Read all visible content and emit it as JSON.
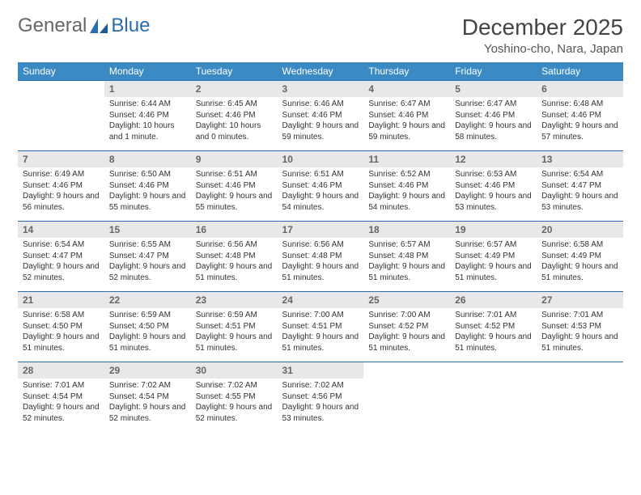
{
  "logo": {
    "text1": "General",
    "text2": "Blue"
  },
  "title": "December 2025",
  "location": "Yoshino-cho, Nara, Japan",
  "colors": {
    "header_bg": "#3b8ac4",
    "header_text": "#ffffff",
    "daynum_bg": "#e8e8e8",
    "daynum_text": "#666666",
    "border": "#2a6cb0",
    "body_text": "#333333",
    "page_bg": "#ffffff"
  },
  "daysOfWeek": [
    "Sunday",
    "Monday",
    "Tuesday",
    "Wednesday",
    "Thursday",
    "Friday",
    "Saturday"
  ],
  "weeks": [
    [
      null,
      {
        "n": "1",
        "sunrise": "6:44 AM",
        "sunset": "4:46 PM",
        "daylight": "10 hours and 1 minute."
      },
      {
        "n": "2",
        "sunrise": "6:45 AM",
        "sunset": "4:46 PM",
        "daylight": "10 hours and 0 minutes."
      },
      {
        "n": "3",
        "sunrise": "6:46 AM",
        "sunset": "4:46 PM",
        "daylight": "9 hours and 59 minutes."
      },
      {
        "n": "4",
        "sunrise": "6:47 AM",
        "sunset": "4:46 PM",
        "daylight": "9 hours and 59 minutes."
      },
      {
        "n": "5",
        "sunrise": "6:47 AM",
        "sunset": "4:46 PM",
        "daylight": "9 hours and 58 minutes."
      },
      {
        "n": "6",
        "sunrise": "6:48 AM",
        "sunset": "4:46 PM",
        "daylight": "9 hours and 57 minutes."
      }
    ],
    [
      {
        "n": "7",
        "sunrise": "6:49 AM",
        "sunset": "4:46 PM",
        "daylight": "9 hours and 56 minutes."
      },
      {
        "n": "8",
        "sunrise": "6:50 AM",
        "sunset": "4:46 PM",
        "daylight": "9 hours and 55 minutes."
      },
      {
        "n": "9",
        "sunrise": "6:51 AM",
        "sunset": "4:46 PM",
        "daylight": "9 hours and 55 minutes."
      },
      {
        "n": "10",
        "sunrise": "6:51 AM",
        "sunset": "4:46 PM",
        "daylight": "9 hours and 54 minutes."
      },
      {
        "n": "11",
        "sunrise": "6:52 AM",
        "sunset": "4:46 PM",
        "daylight": "9 hours and 54 minutes."
      },
      {
        "n": "12",
        "sunrise": "6:53 AM",
        "sunset": "4:46 PM",
        "daylight": "9 hours and 53 minutes."
      },
      {
        "n": "13",
        "sunrise": "6:54 AM",
        "sunset": "4:47 PM",
        "daylight": "9 hours and 53 minutes."
      }
    ],
    [
      {
        "n": "14",
        "sunrise": "6:54 AM",
        "sunset": "4:47 PM",
        "daylight": "9 hours and 52 minutes."
      },
      {
        "n": "15",
        "sunrise": "6:55 AM",
        "sunset": "4:47 PM",
        "daylight": "9 hours and 52 minutes."
      },
      {
        "n": "16",
        "sunrise": "6:56 AM",
        "sunset": "4:48 PM",
        "daylight": "9 hours and 51 minutes."
      },
      {
        "n": "17",
        "sunrise": "6:56 AM",
        "sunset": "4:48 PM",
        "daylight": "9 hours and 51 minutes."
      },
      {
        "n": "18",
        "sunrise": "6:57 AM",
        "sunset": "4:48 PM",
        "daylight": "9 hours and 51 minutes."
      },
      {
        "n": "19",
        "sunrise": "6:57 AM",
        "sunset": "4:49 PM",
        "daylight": "9 hours and 51 minutes."
      },
      {
        "n": "20",
        "sunrise": "6:58 AM",
        "sunset": "4:49 PM",
        "daylight": "9 hours and 51 minutes."
      }
    ],
    [
      {
        "n": "21",
        "sunrise": "6:58 AM",
        "sunset": "4:50 PM",
        "daylight": "9 hours and 51 minutes."
      },
      {
        "n": "22",
        "sunrise": "6:59 AM",
        "sunset": "4:50 PM",
        "daylight": "9 hours and 51 minutes."
      },
      {
        "n": "23",
        "sunrise": "6:59 AM",
        "sunset": "4:51 PM",
        "daylight": "9 hours and 51 minutes."
      },
      {
        "n": "24",
        "sunrise": "7:00 AM",
        "sunset": "4:51 PM",
        "daylight": "9 hours and 51 minutes."
      },
      {
        "n": "25",
        "sunrise": "7:00 AM",
        "sunset": "4:52 PM",
        "daylight": "9 hours and 51 minutes."
      },
      {
        "n": "26",
        "sunrise": "7:01 AM",
        "sunset": "4:52 PM",
        "daylight": "9 hours and 51 minutes."
      },
      {
        "n": "27",
        "sunrise": "7:01 AM",
        "sunset": "4:53 PM",
        "daylight": "9 hours and 51 minutes."
      }
    ],
    [
      {
        "n": "28",
        "sunrise": "7:01 AM",
        "sunset": "4:54 PM",
        "daylight": "9 hours and 52 minutes."
      },
      {
        "n": "29",
        "sunrise": "7:02 AM",
        "sunset": "4:54 PM",
        "daylight": "9 hours and 52 minutes."
      },
      {
        "n": "30",
        "sunrise": "7:02 AM",
        "sunset": "4:55 PM",
        "daylight": "9 hours and 52 minutes."
      },
      {
        "n": "31",
        "sunrise": "7:02 AM",
        "sunset": "4:56 PM",
        "daylight": "9 hours and 53 minutes."
      },
      null,
      null,
      null
    ]
  ],
  "labels": {
    "sunrise": "Sunrise:",
    "sunset": "Sunset:",
    "daylight": "Daylight:"
  }
}
